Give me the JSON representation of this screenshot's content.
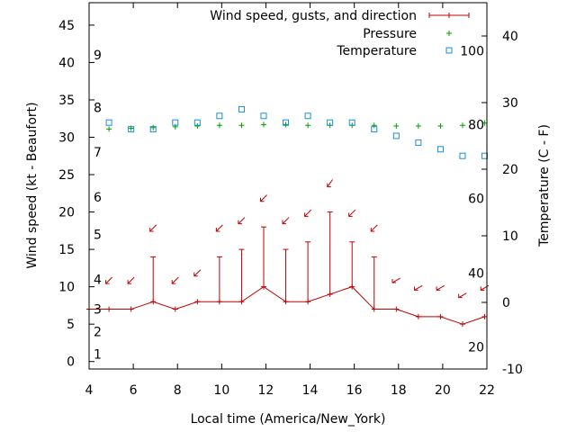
{
  "chart_data": {
    "type": "line",
    "xlabel": "Local time (America/New_York)",
    "ylabel": "Wind speed (kt - Beaufort)",
    "y2label": "Temperature (C - F)",
    "xlim": [
      4,
      22
    ],
    "ylim": [
      -1,
      48
    ],
    "y2lim": [
      -10,
      45
    ],
    "x_ticks": [
      4,
      6,
      8,
      10,
      12,
      14,
      16,
      18,
      20,
      22
    ],
    "y_ticks": [
      0,
      5,
      10,
      15,
      20,
      25,
      30,
      35,
      40,
      45
    ],
    "y2_ticks": [
      -10,
      0,
      10,
      20,
      30,
      40
    ],
    "beaufort_labels": [
      {
        "label": "1",
        "kt": 1
      },
      {
        "label": "2",
        "kt": 4
      },
      {
        "label": "3",
        "kt": 7
      },
      {
        "label": "4",
        "kt": 11
      },
      {
        "label": "5",
        "kt": 17
      },
      {
        "label": "6",
        "kt": 22
      },
      {
        "label": "7",
        "kt": 28
      },
      {
        "label": "8",
        "kt": 34
      },
      {
        "label": "9",
        "kt": 41
      }
    ],
    "fahrenheit_labels": [
      {
        "label": "20",
        "celsius": -6.7
      },
      {
        "label": "40",
        "celsius": 4.4
      },
      {
        "label": "60",
        "celsius": 15.6
      },
      {
        "label": "80",
        "celsius": 26.7
      },
      {
        "label": "100",
        "celsius": 37.8
      }
    ],
    "legend_position": "top-right",
    "series": [
      {
        "name": "Wind speed, gusts, and direction",
        "color": "#c00000",
        "x": [
          4,
          4.9,
          5.9,
          6.9,
          7.9,
          8.9,
          9.9,
          10.9,
          11.9,
          12.9,
          13.9,
          14.9,
          15.9,
          16.9,
          17.9,
          18.9,
          19.9,
          20.9,
          21.9
        ],
        "speed": [
          7,
          7,
          7,
          8,
          7,
          8,
          8,
          8,
          10,
          8,
          8,
          9,
          10,
          7,
          7,
          6,
          6,
          5,
          6
        ],
        "gust": [
          7,
          7,
          7,
          14,
          7,
          8,
          14,
          15,
          18,
          15,
          16,
          20,
          16,
          14,
          7,
          6,
          6,
          5,
          6
        ],
        "direction_deg": [
          45,
          45,
          45,
          45,
          45,
          45,
          45,
          45,
          45,
          45,
          45,
          35,
          45,
          45,
          60,
          60,
          60,
          60,
          60
        ]
      },
      {
        "name": "Pressure",
        "color": "#00a000",
        "x": [
          4.9,
          5.9,
          6.9,
          7.9,
          8.9,
          9.9,
          10.9,
          11.9,
          12.9,
          13.9,
          14.9,
          15.9,
          16.9,
          17.9,
          18.9,
          19.9,
          20.9,
          21.9
        ],
        "y_kt_scale": [
          31.1,
          31.2,
          31.3,
          31.4,
          31.5,
          31.6,
          31.6,
          31.7,
          31.7,
          31.6,
          31.6,
          31.6,
          31.6,
          31.5,
          31.5,
          31.5,
          31.6,
          31.9
        ]
      },
      {
        "name": "Temperature",
        "color": "#1a8fd0",
        "x": [
          4.9,
          5.9,
          6.9,
          7.9,
          8.9,
          9.9,
          10.9,
          11.9,
          12.9,
          13.9,
          14.9,
          15.9,
          16.9,
          17.9,
          18.9,
          19.9,
          20.9,
          21.9
        ],
        "celsius": [
          27,
          26,
          26,
          27,
          27,
          28,
          29,
          28,
          27,
          28,
          27,
          27,
          26,
          25,
          24,
          23,
          22,
          22
        ]
      }
    ]
  }
}
